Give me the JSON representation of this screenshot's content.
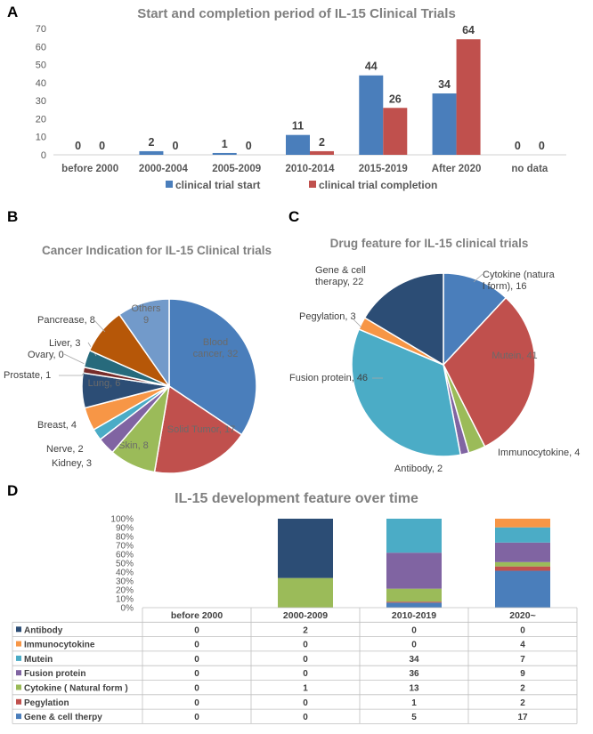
{
  "panels": {
    "a": "A",
    "b": "B",
    "c": "C",
    "d": "D"
  },
  "chart_data": [
    {
      "id": "A",
      "type": "bar",
      "title": "Start and completion period of IL-15 Clinical Trials",
      "categories": [
        "before 2000",
        "2000-2004",
        "2005-2009",
        "2010-2014",
        "2015-2019",
        "After 2020",
        "no data"
      ],
      "series": [
        {
          "name": "clinical trial start",
          "color": "#4a7ebb",
          "values": [
            0,
            2,
            1,
            11,
            44,
            34,
            0
          ]
        },
        {
          "name": "clinical trial completion",
          "color": "#c0504d",
          "values": [
            0,
            0,
            0,
            2,
            26,
            64,
            0
          ]
        }
      ],
      "ylim": [
        0,
        70
      ],
      "yticks": [
        0,
        10,
        20,
        30,
        40,
        50,
        60,
        70
      ],
      "xlabel": "",
      "ylabel": "",
      "grid": false,
      "legend": "bottom"
    },
    {
      "id": "B",
      "type": "pie",
      "title": "Cancer Indication for IL-15 Clinical trials",
      "slices": [
        {
          "label": "Blood cancer",
          "value": 32,
          "color": "#4a7ebb",
          "text": "Blood cancer, 32"
        },
        {
          "label": "Solid Tumor",
          "value": 17,
          "color": "#c0504d",
          "text": "Solid Tumor, 17"
        },
        {
          "label": "Skin",
          "value": 8,
          "color": "#9bbb59",
          "text": "Skin, 8"
        },
        {
          "label": "Kidney",
          "value": 3,
          "color": "#8064a2",
          "text": "Kidney, 3"
        },
        {
          "label": "Nerve",
          "value": 2,
          "color": "#4bacc6",
          "text": "Nerve, 2"
        },
        {
          "label": "Breast",
          "value": 4,
          "color": "#f79646",
          "text": "Breast, 4"
        },
        {
          "label": "Lung",
          "value": 6,
          "color": "#2c4d75",
          "text": "Lung, 6"
        },
        {
          "label": "Prostate",
          "value": 1,
          "color": "#772c2a",
          "text": "Prostate, 1"
        },
        {
          "label": "Ovary",
          "value": 0,
          "color": "#5f7530",
          "text": "Ovary, 0"
        },
        {
          "label": "Liver",
          "value": 3,
          "color": "#276a7c",
          "text": "Liver, 3"
        },
        {
          "label": "Pancrease",
          "value": 8,
          "color": "#b65708",
          "text": "Pancrease, 8"
        },
        {
          "label": "Others",
          "value": 9,
          "color": "#729aca",
          "text": "Others 9"
        }
      ]
    },
    {
      "id": "C",
      "type": "pie",
      "title": "Drug feature for IL-15 clinical trials",
      "slices": [
        {
          "label": "Cytokine (natural form)",
          "value": 16,
          "color": "#4a7ebb",
          "text": "Cytokine (natural form), 16"
        },
        {
          "label": "Mutein",
          "value": 41,
          "color": "#c0504d",
          "text": "Mutein, 41"
        },
        {
          "label": "Immunocytokine",
          "value": 4,
          "color": "#9bbb59",
          "text": "Immunocytokine, 4"
        },
        {
          "label": "Antibody",
          "value": 2,
          "color": "#8064a2",
          "text": "Antibody, 2"
        },
        {
          "label": "Fusion protein",
          "value": 46,
          "color": "#4bacc6",
          "text": "Fusion protein, 46"
        },
        {
          "label": "Pegylation",
          "value": 3,
          "color": "#f79646",
          "text": "Pegylation, 3"
        },
        {
          "label": "Gene & cell therapy",
          "value": 22,
          "color": "#2c4d75",
          "text": "Gene & cell therapy, 22"
        }
      ]
    },
    {
      "id": "D",
      "type": "bar",
      "stacked": "percent",
      "title": "IL-15 development feature over time",
      "categories": [
        "before 2000",
        "2000-2009",
        "2010-2019",
        "2020~"
      ],
      "yticks": [
        "0%",
        "10%",
        "20%",
        "30%",
        "40%",
        "50%",
        "60%",
        "70%",
        "80%",
        "90%",
        "100%"
      ],
      "series": [
        {
          "name": "Gene & cell therpy",
          "color": "#4a7ebb",
          "values": [
            0,
            0,
            5,
            17
          ]
        },
        {
          "name": "Pegylation",
          "color": "#c0504d",
          "values": [
            0,
            0,
            1,
            2
          ]
        },
        {
          "name": "Cytokine ( Natural form )",
          "color": "#9bbb59",
          "values": [
            0,
            1,
            13,
            2
          ]
        },
        {
          "name": "Fusion protein",
          "color": "#8064a2",
          "values": [
            0,
            0,
            36,
            9
          ]
        },
        {
          "name": "Mutein",
          "color": "#4bacc6",
          "values": [
            0,
            0,
            34,
            7
          ]
        },
        {
          "name": "Immunocytokine",
          "color": "#f79646",
          "values": [
            0,
            0,
            0,
            4
          ]
        },
        {
          "name": "Antibody",
          "color": "#2c4d75",
          "values": [
            0,
            2,
            0,
            0
          ]
        }
      ],
      "table_order": [
        "Antibody",
        "Immunocytokine",
        "Mutein",
        "Fusion protein",
        "Cytokine ( Natural form )",
        "Pegylation",
        "Gene & cell therpy"
      ]
    }
  ]
}
